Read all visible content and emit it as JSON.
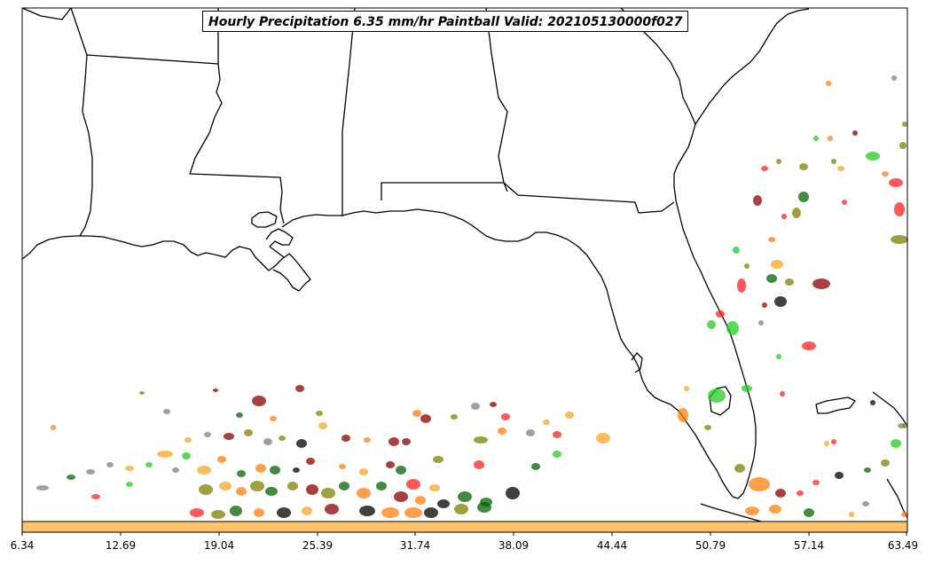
{
  "title": "Hourly Precipitation 6.35 mm/hr Paintball Valid: 202105130000f027",
  "colorbar": {
    "color": "#ffc46b",
    "tick_labels": [
      "6.34",
      "12.69",
      "19.04",
      "25.39",
      "31.74",
      "38.09",
      "44.44",
      "50.79",
      "57.14",
      "63.49"
    ]
  },
  "colors": {
    "coastline": "#000000",
    "paintball_palette": [
      "#8b0000",
      "#ff2020",
      "#ff7f0e",
      "#f5a623",
      "#808000",
      "#006400",
      "#22cc22",
      "#000000",
      "#7f7f7f"
    ]
  }
}
